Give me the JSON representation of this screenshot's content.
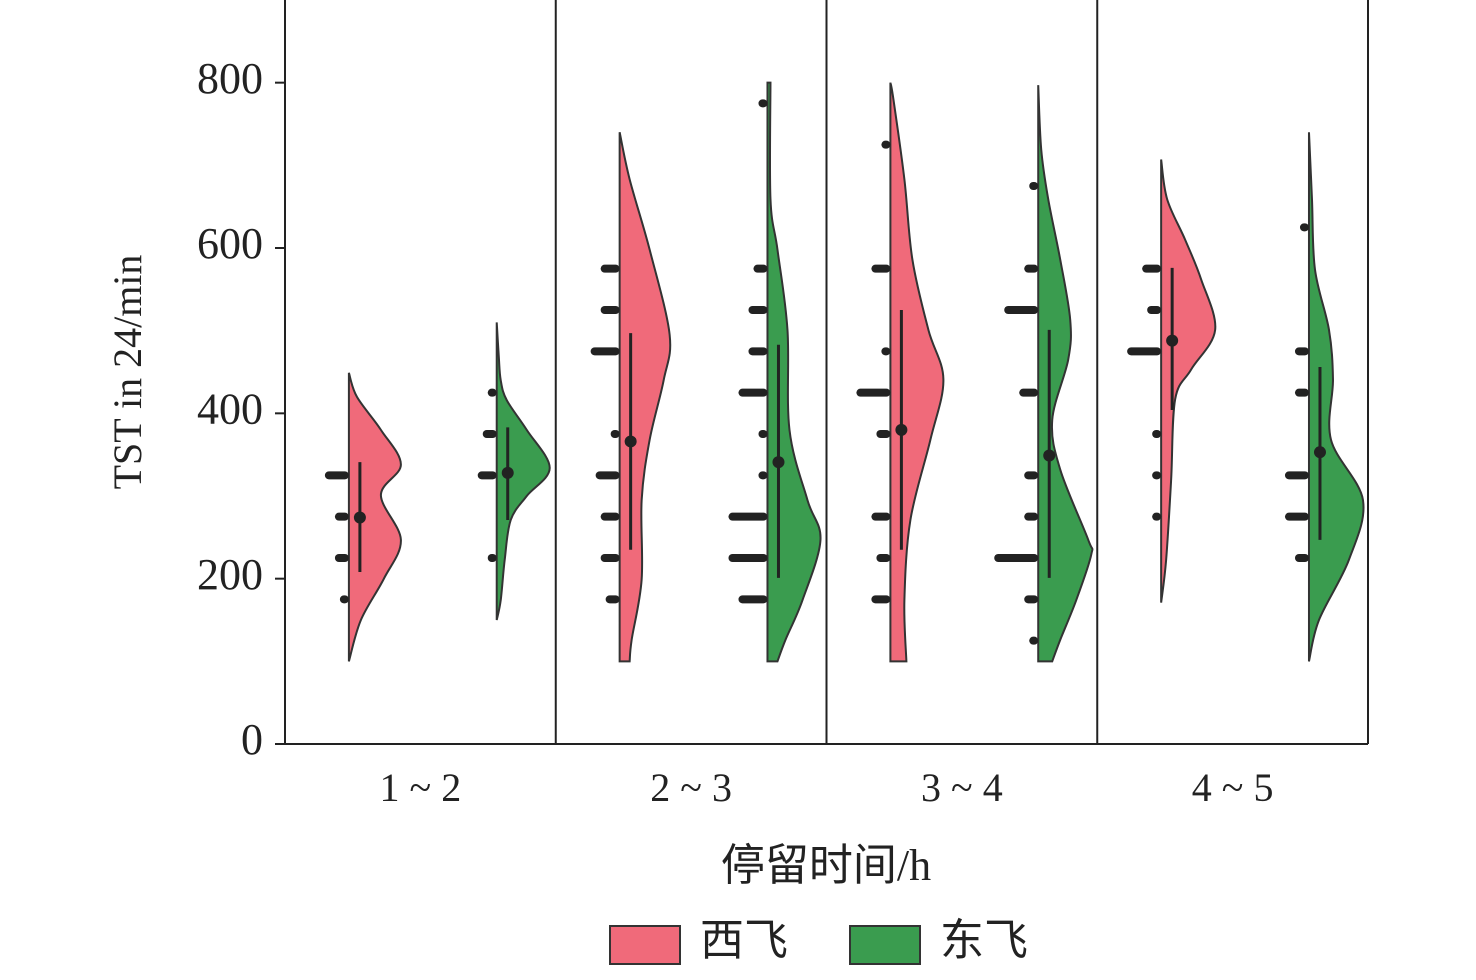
{
  "chart_data": {
    "type": "half_violin",
    "x_label": "停留时间/h",
    "y_label": "TST in 24/min",
    "categories": [
      "1 ~ 2",
      "2 ~ 3",
      "3 ~ 4",
      "4 ~ 5"
    ],
    "ylim": [
      0,
      900
    ],
    "yticks": [
      0,
      200,
      400,
      600,
      800
    ],
    "legend": "bottom",
    "series": [
      {
        "name": "西飞",
        "color": "#f06a7a",
        "groups": [
          {
            "violin_y": [
              449,
              420,
              380,
              338,
              301,
              247,
              200,
              150,
              100
            ],
            "density": [
              0,
              0.8,
              3.2,
              5.2,
              3.2,
              5.2,
              3.5,
              1.2,
              0
            ],
            "mean": 274,
            "range": [
              208,
              341
            ],
            "strip_y": [
              325,
              275,
              225,
              175
            ],
            "counts": [
              4,
              2,
              2,
              1
            ]
          },
          {
            "violin_y": [
              740,
              683,
              598,
              495,
              440,
              368,
              295,
              199,
              126,
              100
            ],
            "density": [
              0,
              1.0,
              3.0,
              5.0,
              4.4,
              3.0,
              2.2,
              2.2,
              1.2,
              1.0
            ],
            "mean": 366,
            "range": [
              235,
              497
            ],
            "strip_y": [
              575,
              525,
              475,
              375,
              325,
              275,
              225,
              175
            ],
            "counts": [
              3,
              3,
              5,
              1,
              4,
              3,
              3,
              2
            ]
          },
          {
            "violin_y": [
              800,
              780,
              683,
              586,
              501,
              441,
              368,
              271,
              174,
              100
            ],
            "density": [
              0,
              0.3,
              1.4,
              2.2,
              3.8,
              5.3,
              4.0,
              2.0,
              1.4,
              1.6
            ],
            "mean": 380,
            "range": [
              235,
              525
            ],
            "strip_y": [
              725,
              575,
              475,
              425,
              375,
              275,
              225,
              175
            ],
            "counts": [
              1,
              3,
              1,
              6,
              2,
              3,
              2,
              3
            ]
          },
          {
            "violin_y": [
              707,
              659,
              610,
              562,
              501,
              453,
              417,
              320,
              223,
              171
            ],
            "density": [
              0,
              0.6,
              2.4,
              4.0,
              5.4,
              3.0,
              1.4,
              1.0,
              0.5,
              0
            ],
            "mean": 488,
            "range": [
              404,
              576
            ],
            "strip_y": [
              575,
              525,
              475,
              375,
              325,
              275
            ],
            "counts": [
              3,
              2,
              6,
              1,
              1,
              1
            ]
          }
        ]
      },
      {
        "name": "东飞",
        "color": "#3a9c4f",
        "groups": [
          {
            "violin_y": [
              510,
              470,
              440,
              416,
              380,
              334,
              300,
              271,
              223,
              174,
              150
            ],
            "density": [
              0,
              0.2,
              0.4,
              1.0,
              3.0,
              5.3,
              3.0,
              1.4,
              0.8,
              0.4,
              0
            ],
            "mean": 328,
            "range": [
              271,
              383
            ],
            "strip_y": [
              425,
              375,
              325,
              225
            ],
            "counts": [
              1,
              2,
              3,
              1
            ]
          },
          {
            "violin_y": [
              800,
              659,
              598,
              501,
              380,
              295,
              247,
              174,
              126,
              100
            ],
            "density": [
              0.3,
              0.3,
              1.0,
              2.0,
              2.2,
              4.0,
              5.3,
              3.5,
              1.8,
              1.0
            ],
            "mean": 341,
            "range": [
              201,
              483
            ],
            "strip_y": [
              775,
              575,
              525,
              475,
              425,
              375,
              325,
              275,
              225,
              175
            ],
            "counts": [
              1,
              2,
              3,
              3,
              5,
              1,
              1,
              7,
              7,
              5
            ]
          },
          {
            "violin_y": [
              797,
              719,
              659,
              586,
              513,
              465,
              392,
              332,
              247,
              229,
              174,
              126,
              100
            ],
            "density": [
              0,
              0.3,
              1.0,
              2.2,
              3.2,
              3.0,
              1.4,
              2.2,
              5.0,
              5.3,
              3.8,
              2.2,
              1.4
            ],
            "mean": 349,
            "range": [
              201,
              501
            ],
            "strip_y": [
              675,
              575,
              525,
              425,
              325,
              275,
              225,
              175,
              125
            ],
            "counts": [
              1,
              2,
              6,
              3,
              2,
              2,
              8,
              2,
              1
            ]
          },
          {
            "violin_y": [
              740,
              659,
              574,
              501,
              441,
              368,
              295,
              223,
              150,
              100
            ],
            "density": [
              0,
              0.3,
              0.6,
              2.0,
              2.4,
              2.2,
              5.4,
              4.0,
              1.0,
              0
            ],
            "mean": 353,
            "range": [
              247,
              456
            ],
            "strip_y": [
              625,
              475,
              425,
              325,
              275,
              225
            ],
            "counts": [
              1,
              2,
              2,
              4,
              4,
              2
            ]
          }
        ]
      }
    ]
  }
}
